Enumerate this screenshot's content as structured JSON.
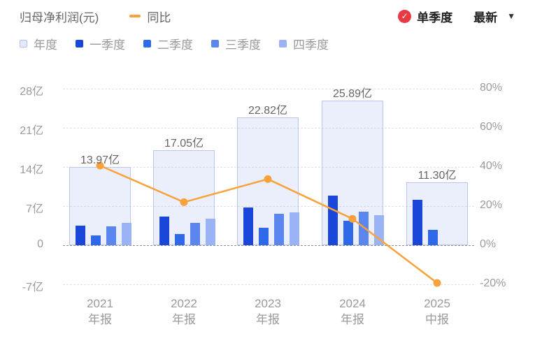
{
  "header": {
    "title": "归母净利润(元)",
    "line_legend_label": "同比",
    "quarter_toggle_label": "单季度",
    "check_glyph": "✓",
    "latest_label": "最新",
    "dropdown_caret": "▼"
  },
  "colors": {
    "yoy_line": "#f9a13b",
    "toggle_red": "#e83a44",
    "annual_fill": "#e5ecfa",
    "annual_border": "#b9c7ee"
  },
  "legend": {
    "items": [
      {
        "label": "年度",
        "color": "#e3eafb",
        "border": "#b4c3ee"
      },
      {
        "label": "一季度",
        "color": "#1b46da",
        "border": "#1b46da"
      },
      {
        "label": "二季度",
        "color": "#2f68e8",
        "border": "#2f68e8"
      },
      {
        "label": "三季度",
        "color": "#5b86ee",
        "border": "#5b86ee"
      },
      {
        "label": "四季度",
        "color": "#9ab3f5",
        "border": "#9ab3f5"
      }
    ]
  },
  "chart_data": {
    "type": "bar",
    "categories": [
      [
        "2021",
        "年报"
      ],
      [
        "2022",
        "年报"
      ],
      [
        "2023",
        "年报"
      ],
      [
        "2024",
        "年报"
      ],
      [
        "2025",
        "中报"
      ]
    ],
    "annual_series": {
      "name": "年度",
      "values": [
        13.97,
        17.05,
        22.82,
        25.89,
        11.3
      ]
    },
    "annual_labels": [
      "13.97亿",
      "17.05亿",
      "22.82亿",
      "25.89亿",
      "11.30亿"
    ],
    "quarter_series": [
      {
        "name": "一季度",
        "color": "#1b46da",
        "values": [
          3.5,
          5.1,
          6.7,
          8.9,
          8.1
        ]
      },
      {
        "name": "二季度",
        "color": "#2f68e8",
        "values": [
          1.75,
          2.0,
          3.1,
          4.4,
          2.75
        ]
      },
      {
        "name": "三季度",
        "color": "#5b86ee",
        "values": [
          3.4,
          4.0,
          5.6,
          6.0,
          null
        ]
      },
      {
        "name": "四季度",
        "color": "#9ab3f5",
        "values": [
          4.0,
          4.75,
          5.9,
          5.4,
          null
        ]
      }
    ],
    "line_series": {
      "name": "同比",
      "color": "#f9a13b",
      "values_pct": [
        40.7,
        22.0,
        33.8,
        13.5,
        -19.3
      ]
    },
    "left_axis": {
      "unit": "亿",
      "ticks": [
        "28亿",
        "21亿",
        "14亿",
        "7亿",
        "0",
        "-7亿"
      ],
      "values": [
        28,
        21,
        14,
        7,
        0,
        -7
      ],
      "range": [
        -7,
        28
      ]
    },
    "right_axis": {
      "unit": "%",
      "ticks": [
        "80%",
        "60%",
        "40%",
        "20%",
        "0%",
        "-20%"
      ],
      "values": [
        80,
        60,
        40,
        20,
        0,
        -20
      ],
      "range": [
        -20,
        80
      ]
    },
    "grid": "horizontal-dashed",
    "legend_position": "top-left",
    "title": "归母净利润(元)"
  }
}
